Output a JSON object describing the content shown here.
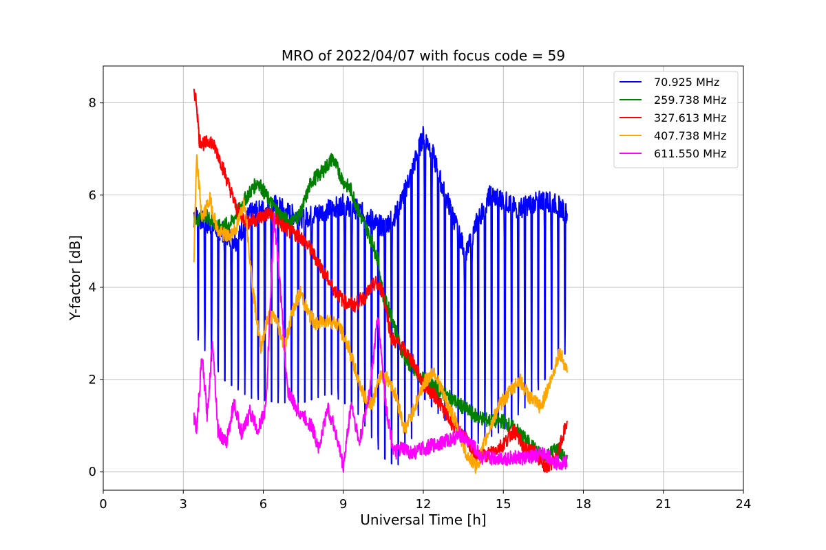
{
  "chart_data": {
    "type": "line",
    "title": "MRO of 2022/04/07 with focus code = 59",
    "xlabel": "Universal Time [h]",
    "ylabel": "Y-factor [dB]",
    "xlim": [
      0,
      24
    ],
    "ylim": [
      -0.4,
      8.8
    ],
    "xticks": [
      0,
      3,
      6,
      9,
      12,
      15,
      18,
      21,
      24
    ],
    "yticks": [
      0,
      2,
      4,
      6,
      8
    ],
    "grid": true,
    "legend_position": "top-right",
    "series": [
      {
        "name": "  70.925 MHz",
        "color": "#0000ff",
        "style": "dips",
        "baseline": [
          [
            3.4,
            5.6
          ],
          [
            3.8,
            5.4
          ],
          [
            4.5,
            5.2
          ],
          [
            5.0,
            5.0
          ],
          [
            5.5,
            5.6
          ],
          [
            6.0,
            5.7
          ],
          [
            6.5,
            5.8
          ],
          [
            7.0,
            5.6
          ],
          [
            7.5,
            5.5
          ],
          [
            8.0,
            5.6
          ],
          [
            8.5,
            5.7
          ],
          [
            9.0,
            5.8
          ],
          [
            9.5,
            5.7
          ],
          [
            10.0,
            5.5
          ],
          [
            10.5,
            5.3
          ],
          [
            11.0,
            5.6
          ],
          [
            11.5,
            6.4
          ],
          [
            12.0,
            7.3
          ],
          [
            12.3,
            7.0
          ],
          [
            12.7,
            6.2
          ],
          [
            13.2,
            5.4
          ],
          [
            13.6,
            4.7
          ],
          [
            14.0,
            5.4
          ],
          [
            14.5,
            6.0
          ],
          [
            15.0,
            5.9
          ],
          [
            15.5,
            5.7
          ],
          [
            16.0,
            5.8
          ],
          [
            16.5,
            5.9
          ],
          [
            17.0,
            5.8
          ],
          [
            17.4,
            5.6
          ]
        ],
        "dip_points": [
          [
            3.4,
            3.0
          ],
          [
            4.5,
            2.0
          ],
          [
            5.5,
            1.6
          ],
          [
            6.5,
            1.5
          ],
          [
            7.5,
            1.5
          ],
          [
            8.5,
            1.7
          ],
          [
            9.5,
            1.3
          ],
          [
            10.5,
            0.3
          ],
          [
            11.0,
            0.1
          ],
          [
            11.5,
            0.6
          ],
          [
            12.0,
            1.6
          ],
          [
            13.0,
            1.0
          ],
          [
            14.0,
            0.6
          ],
          [
            15.0,
            0.9
          ],
          [
            16.0,
            1.5
          ],
          [
            17.0,
            2.4
          ],
          [
            17.4,
            2.6
          ]
        ],
        "period_h": 0.25
      },
      {
        "name": "259.738 MHz",
        "color": "#008000",
        "style": "line",
        "points": [
          [
            3.4,
            5.4
          ],
          [
            3.8,
            5.6
          ],
          [
            4.3,
            5.3
          ],
          [
            4.8,
            5.4
          ],
          [
            5.3,
            5.9
          ],
          [
            5.8,
            6.3
          ],
          [
            6.2,
            5.9
          ],
          [
            6.6,
            5.6
          ],
          [
            7.0,
            5.4
          ],
          [
            7.4,
            5.6
          ],
          [
            7.8,
            6.3
          ],
          [
            8.2,
            6.5
          ],
          [
            8.6,
            6.8
          ],
          [
            9.0,
            6.3
          ],
          [
            9.3,
            6.1
          ],
          [
            9.6,
            5.6
          ],
          [
            10.0,
            5.1
          ],
          [
            10.3,
            4.6
          ],
          [
            10.5,
            3.8
          ],
          [
            10.8,
            3.4
          ],
          [
            11.2,
            2.6
          ],
          [
            11.6,
            2.2
          ],
          [
            12.0,
            2.0
          ],
          [
            12.5,
            1.8
          ],
          [
            13.0,
            1.6
          ],
          [
            13.5,
            1.4
          ],
          [
            14.0,
            1.2
          ],
          [
            14.5,
            1.1
          ],
          [
            15.0,
            1.1
          ],
          [
            15.5,
            0.9
          ],
          [
            16.0,
            0.6
          ],
          [
            16.5,
            0.3
          ],
          [
            17.0,
            0.5
          ],
          [
            17.4,
            0.2
          ]
        ]
      },
      {
        "name": "327.613 MHz",
        "color": "#ff0000",
        "style": "line",
        "points": [
          [
            3.4,
            8.3
          ],
          [
            3.5,
            8.0
          ],
          [
            3.6,
            7.2
          ],
          [
            3.8,
            7.1
          ],
          [
            4.0,
            7.2
          ],
          [
            4.3,
            6.9
          ],
          [
            4.6,
            6.4
          ],
          [
            5.0,
            5.7
          ],
          [
            5.4,
            5.4
          ],
          [
            5.8,
            5.5
          ],
          [
            6.2,
            5.6
          ],
          [
            6.6,
            5.4
          ],
          [
            7.0,
            5.2
          ],
          [
            7.4,
            5.1
          ],
          [
            7.8,
            4.8
          ],
          [
            8.2,
            4.4
          ],
          [
            8.6,
            4.0
          ],
          [
            9.0,
            3.7
          ],
          [
            9.4,
            3.6
          ],
          [
            9.8,
            3.8
          ],
          [
            10.2,
            4.1
          ],
          [
            10.5,
            3.9
          ],
          [
            10.8,
            2.9
          ],
          [
            11.2,
            2.7
          ],
          [
            11.6,
            2.4
          ],
          [
            12.0,
            1.9
          ],
          [
            12.5,
            1.6
          ],
          [
            13.0,
            1.1
          ],
          [
            13.5,
            0.8
          ],
          [
            14.0,
            0.3
          ],
          [
            14.5,
            0.4
          ],
          [
            15.0,
            0.6
          ],
          [
            15.4,
            0.9
          ],
          [
            15.8,
            0.5
          ],
          [
            16.2,
            0.4
          ],
          [
            16.6,
            0.1
          ],
          [
            17.0,
            0.3
          ],
          [
            17.4,
            1.1
          ]
        ]
      },
      {
        "name": "407.738 MHz",
        "color": "#ffa500",
        "style": "line",
        "points": [
          [
            3.4,
            4.6
          ],
          [
            3.5,
            6.8
          ],
          [
            3.7,
            5.5
          ],
          [
            4.0,
            5.9
          ],
          [
            4.3,
            5.2
          ],
          [
            4.7,
            5.1
          ],
          [
            5.0,
            5.3
          ],
          [
            5.3,
            5.9
          ],
          [
            5.6,
            4.0
          ],
          [
            5.9,
            2.7
          ],
          [
            6.2,
            3.4
          ],
          [
            6.5,
            3.3
          ],
          [
            6.8,
            2.7
          ],
          [
            7.1,
            3.5
          ],
          [
            7.4,
            3.9
          ],
          [
            7.7,
            3.4
          ],
          [
            8.0,
            3.2
          ],
          [
            8.4,
            3.3
          ],
          [
            8.8,
            3.2
          ],
          [
            9.2,
            2.7
          ],
          [
            9.5,
            2.1
          ],
          [
            9.8,
            1.6
          ],
          [
            10.1,
            1.5
          ],
          [
            10.4,
            2.1
          ],
          [
            10.7,
            2.0
          ],
          [
            11.0,
            1.6
          ],
          [
            11.3,
            0.9
          ],
          [
            11.6,
            1.3
          ],
          [
            12.0,
            1.9
          ],
          [
            12.4,
            2.2
          ],
          [
            12.8,
            1.6
          ],
          [
            13.2,
            1.1
          ],
          [
            13.6,
            0.4
          ],
          [
            14.0,
            0.1
          ],
          [
            14.4,
            0.8
          ],
          [
            14.8,
            1.4
          ],
          [
            15.2,
            1.7
          ],
          [
            15.6,
            2.0
          ],
          [
            16.0,
            1.6
          ],
          [
            16.4,
            1.4
          ],
          [
            16.8,
            2.0
          ],
          [
            17.1,
            2.6
          ],
          [
            17.4,
            2.2
          ]
        ]
      },
      {
        "name": "611.550 MHz",
        "color": "#ff00ff",
        "style": "line",
        "points": [
          [
            3.4,
            1.2
          ],
          [
            3.5,
            0.9
          ],
          [
            3.7,
            2.5
          ],
          [
            3.9,
            1.2
          ],
          [
            4.1,
            2.9
          ],
          [
            4.3,
            0.9
          ],
          [
            4.6,
            0.6
          ],
          [
            4.9,
            1.5
          ],
          [
            5.2,
            0.8
          ],
          [
            5.5,
            1.3
          ],
          [
            5.8,
            0.9
          ],
          [
            6.1,
            1.4
          ],
          [
            6.4,
            5.5
          ],
          [
            6.6,
            4.3
          ],
          [
            6.9,
            1.8
          ],
          [
            7.2,
            1.4
          ],
          [
            7.5,
            1.2
          ],
          [
            7.8,
            1.0
          ],
          [
            8.1,
            0.5
          ],
          [
            8.4,
            1.4
          ],
          [
            8.7,
            0.9
          ],
          [
            9.0,
            0.1
          ],
          [
            9.3,
            1.5
          ],
          [
            9.6,
            0.6
          ],
          [
            10.0,
            1.8
          ],
          [
            10.3,
            3.4
          ],
          [
            10.6,
            1.4
          ],
          [
            10.9,
            0.4
          ],
          [
            11.2,
            0.5
          ],
          [
            11.6,
            0.4
          ],
          [
            12.0,
            0.5
          ],
          [
            12.5,
            0.6
          ],
          [
            13.0,
            0.7
          ],
          [
            13.4,
            0.8
          ],
          [
            13.8,
            0.6
          ],
          [
            14.2,
            0.3
          ],
          [
            14.6,
            0.3
          ],
          [
            15.0,
            0.3
          ],
          [
            15.5,
            0.3
          ],
          [
            16.0,
            0.3
          ],
          [
            16.5,
            0.4
          ],
          [
            17.0,
            0.2
          ],
          [
            17.4,
            0.2
          ]
        ]
      }
    ]
  }
}
